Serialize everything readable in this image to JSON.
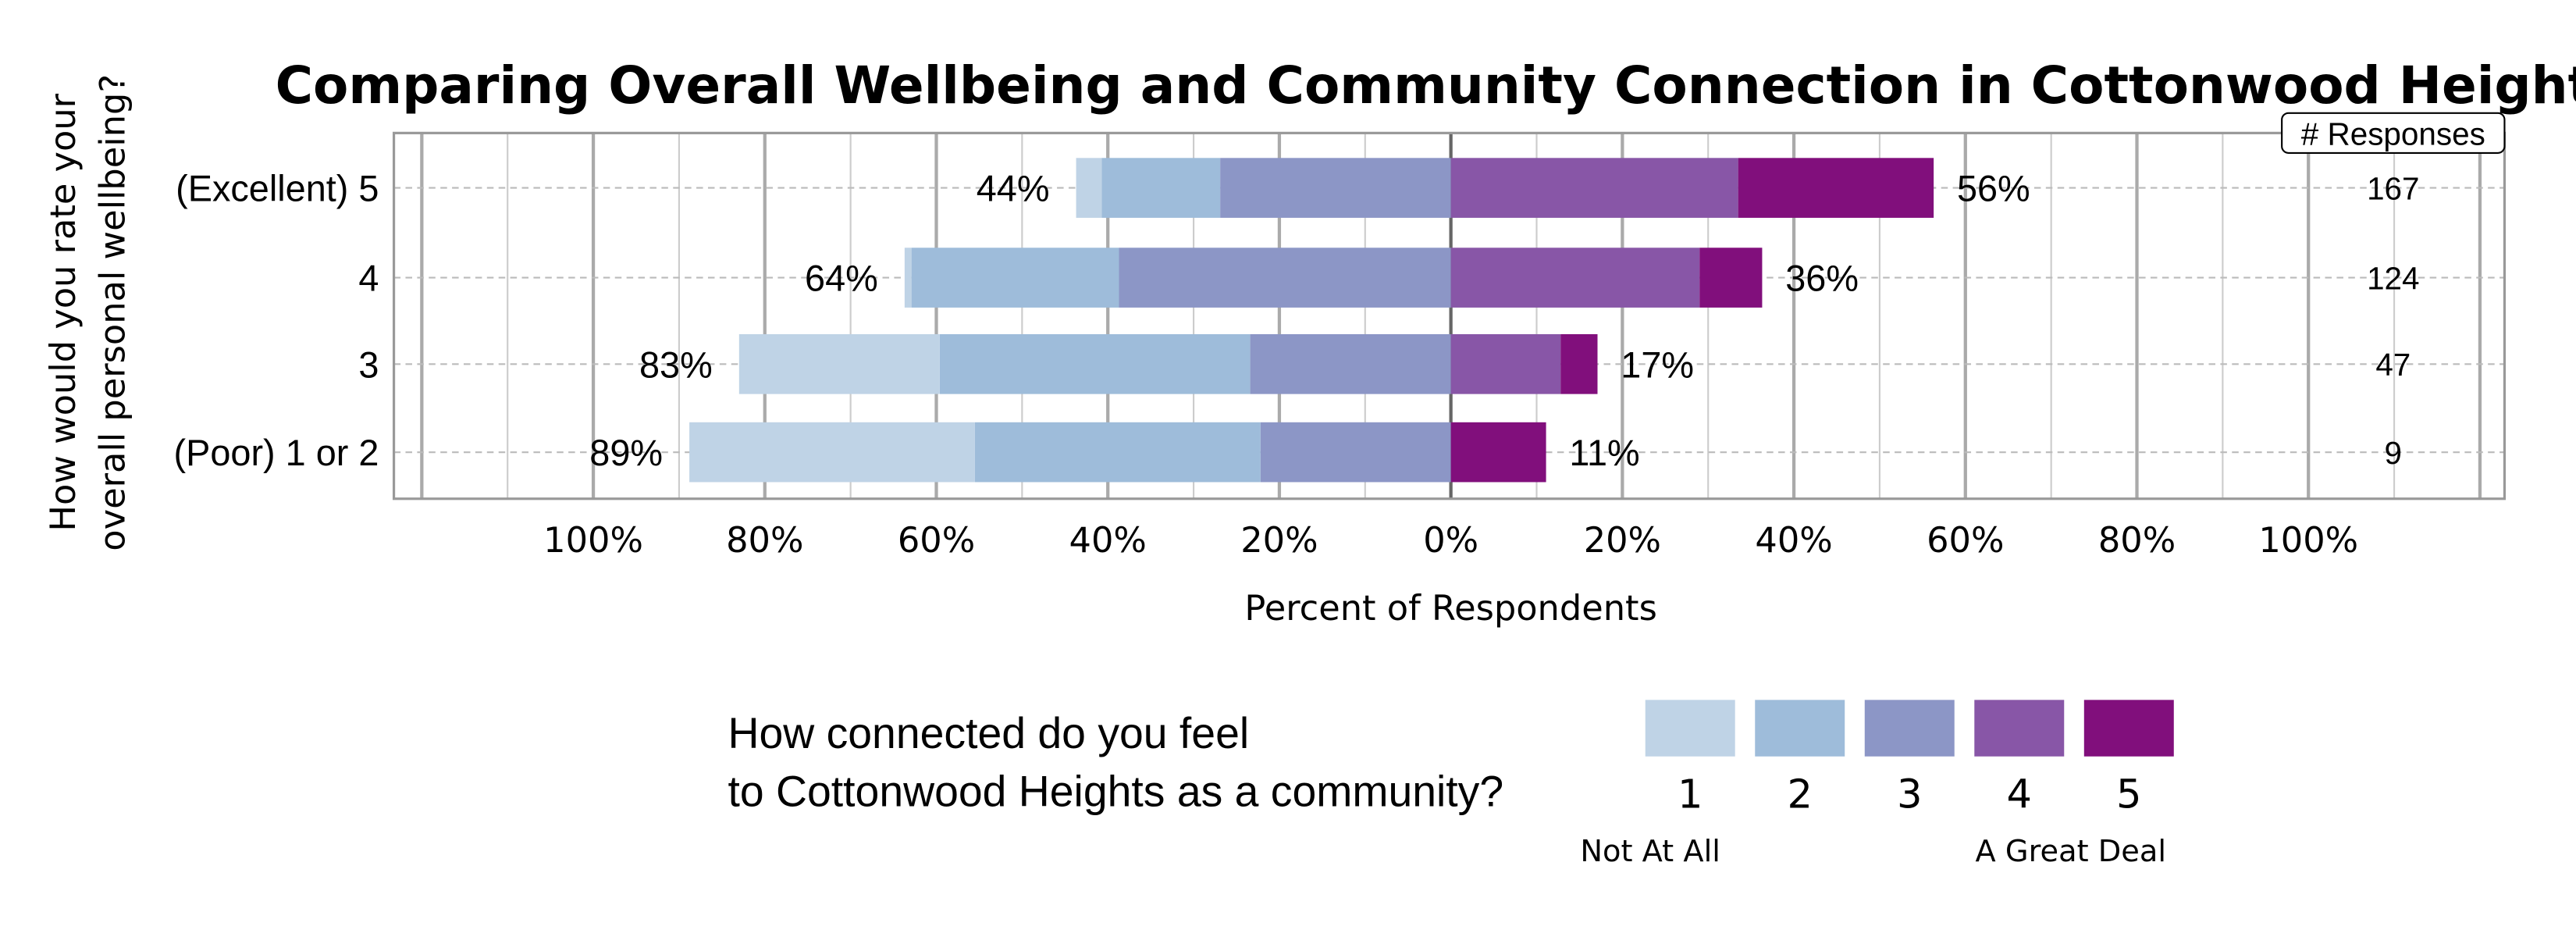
{
  "chart_data": {
    "type": "bar",
    "orientation": "horizontal-diverging",
    "title": "Comparing Overall Wellbeing and Community Connection in Cottonwood Heights",
    "xlabel": "Percent of Respondents",
    "ylabel_lines": [
      "How would you rate your",
      "overall personal wellbeing?"
    ],
    "xlim": [
      -100,
      100
    ],
    "x_tick_labels": [
      "100%",
      "80%",
      "60%",
      "40%",
      "20%",
      "0%",
      "20%",
      "40%",
      "60%",
      "80%",
      "100%"
    ],
    "grid": true,
    "categories": [
      "(Excellent) 5",
      "4",
      "3",
      "(Poor) 1 or 2"
    ],
    "series": [
      {
        "name": "1",
        "values": [
          3.0,
          0.8,
          23.4,
          33.3
        ]
      },
      {
        "name": "2",
        "values": [
          13.8,
          24.2,
          36.2,
          33.3
        ]
      },
      {
        "name": "3",
        "values": [
          26.9,
          38.7,
          23.4,
          22.2
        ]
      },
      {
        "name": "4",
        "values": [
          33.5,
          29.0,
          12.8,
          0
        ]
      },
      {
        "name": "5",
        "values": [
          22.8,
          7.3,
          4.3,
          11.1
        ]
      }
    ],
    "left_labels": [
      "44%",
      "64%",
      "83%",
      "89%"
    ],
    "right_labels": [
      "56%",
      "36%",
      "17%",
      "11%"
    ],
    "responses_header": "# Responses",
    "responses": [
      "167",
      "124",
      "47",
      "9"
    ],
    "colors": [
      "#BFD3E6",
      "#9EBCDA",
      "#8C96C6",
      "#8856A7",
      "#810F7C"
    ],
    "legend": {
      "title_lines": [
        "How connected do you feel",
        "to Cottonwood Heights as a community?"
      ],
      "keys": [
        "1",
        "2",
        "3",
        "4",
        "5"
      ],
      "low_label": "Not At All",
      "high_label": "A Great Deal",
      "placement": "bottom"
    }
  }
}
